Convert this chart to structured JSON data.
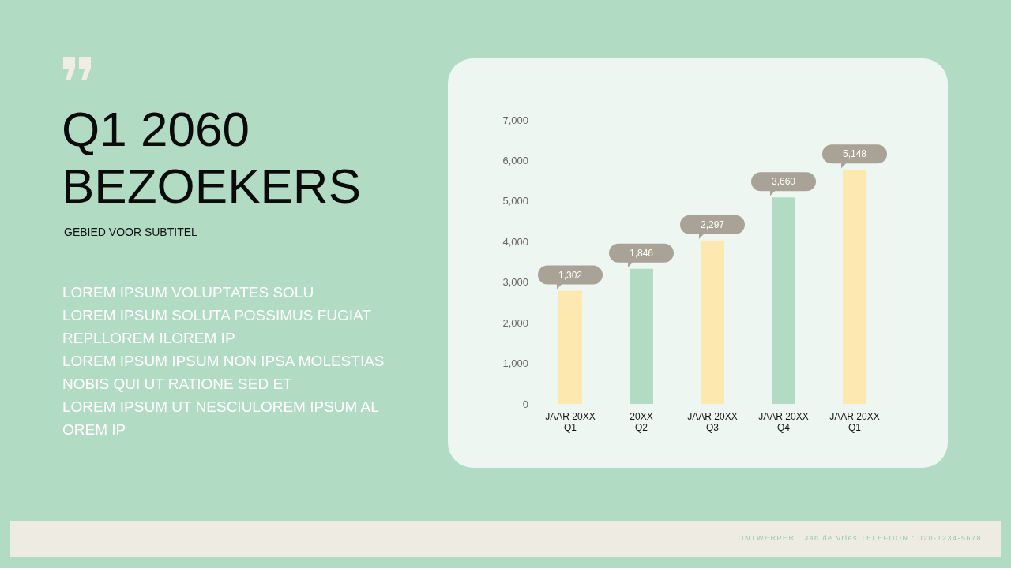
{
  "chart_data": {
    "type": "bar",
    "title": "Q1 2060\nBEZOEKERS",
    "subtitle": "GEBIED VOOR SUBTITEL",
    "annotations": [
      "1,302",
      "1,846",
      "2,297",
      "3,660",
      "5,148",
      "LOREM IPSUM VOLUPTATES SOLU",
      "LOREM IPSUM SOLUTA POSSIMUS FUGIAT",
      "REPLLOREM ILOREM IP",
      "LOREM IPSUM IPSUM NON IPSA MOLESTIAS",
      "NOBIS QUI UT RATIONE SED ET",
      "LOREM IPSUM UT NESCIULOREM IPSUM AL",
      "OREM IP",
      "ONTWERPER : Jan de Vries TELEFOON : 020-1234-5678"
    ],
    "categories": [
      "JAAR 20XX\nQ1",
      "20XX\nQ2",
      "JAAR 20XX\nQ3",
      "JAAR 20XX\nQ4",
      "JAAR 20XX\nQ1"
    ],
    "values": [
      2790,
      3330,
      4030,
      5090,
      5770
    ],
    "colors": [
      "#fde9b0",
      "#b2dbc4",
      "#fde9b0",
      "#b2dbc4",
      "#fde9b0"
    ],
    "ylim": [
      0,
      7000
    ],
    "yticks": [
      {
        "value": 0,
        "label": "0"
      },
      {
        "value": 1000,
        "label": "1,000"
      },
      {
        "value": 2000,
        "label": "2,000"
      },
      {
        "value": 3000,
        "label": "3,000"
      },
      {
        "value": 4000,
        "label": "4,000"
      },
      {
        "value": 5000,
        "label": "5,000"
      },
      {
        "value": 6000,
        "label": "6,000"
      },
      {
        "value": 7000,
        "label": "7,000"
      }
    ],
    "grid": false,
    "legend": false
  }
}
